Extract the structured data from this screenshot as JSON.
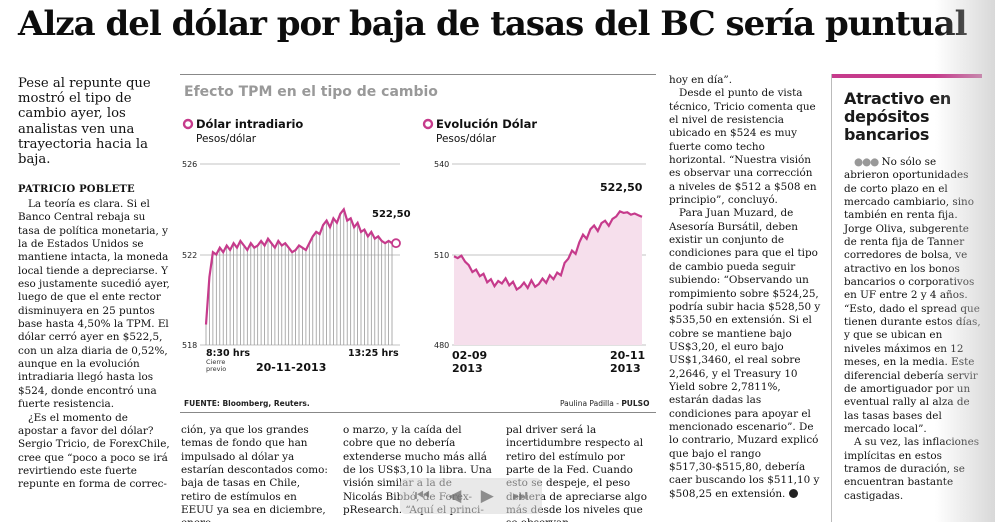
{
  "article": {
    "headline": "Alza del dólar por baja de tasas del BC sería puntual",
    "lead": "Pese al repunte que mostró el tipo de cambio ayer, los analistas ven una trayectoria hacia la baja.",
    "byline": "PATRICIO POBLETE",
    "col1": [
      "La teoría es clara. Si el Banco Central rebaja su tasa de política monetaria, y la de Estados Unidos se mantiene intacta, la moneda local tiende a depreciarse. Y eso justamente sucedió ayer, luego de que el ente rector disminuyera en 25 puntos base hasta 4,50% la TPM. El dólar cerró ayer en $522,5, con un alza diaria de 0,52%, aunque en la evolución intradiaria llegó hasta los $524, donde encontró una fuerte resistencia.",
      "¿Es el momento de apostar a favor del dólar? Sergio Tricio, de ForexChile, cree que “poco a poco se irá revirtiendo este fuerte repunte en forma de correc-"
    ],
    "col2": "ción, ya que los grandes temas de fondo que han impulsado al dólar ya estarían descontados como: baja de tasas en Chile, retiro de estímulos en EEUU ya sea en diciembre, enero",
    "col3": "o marzo, y la caída del cobre que no debería extenderse mucho más allá de los US$3,10 la libra. Una visión similar a la de Nicolás Bibbó, de Forex-pResearch. “Aquí el princi-",
    "col4": "pal driver será la incertidumbre respecto al retiro del estímulo por parte de la Fed. Cuando esto se despeje, el peso debiera de apreciarse algo más desde los niveles que se observan",
    "col5": [
      "hoy en día”.",
      "Desde el punto de vista técnico, Tricio comenta que el nivel de resistencia ubicado en $524 es muy fuerte como techo horizontal. “Nuestra visión es observar una corrección a niveles de $512 a $508 en principio”, concluyó.",
      "Para Juan Muzard, de Asesoría Bursátil, deben existir un conjunto de condiciones para que el tipo de cambio pueda seguir subiendo: “Observando un rompimiento sobre $524,25, podría subir hacia $528,50 y $535,50 en extensión. Si el cobre se mantiene bajo US$3,20, el euro bajo US$1,3460, el real sobre 2,2646, y el Treasury 10 Yield sobre 2,7811%, estarán dadas las condiciones para apoyar el mencionado escenario”. De lo contrario, Muzard explicó que bajo el rango $517,30-$515,80, debería caer buscando los $511,10 y $508,25 en extensión."
    ],
    "endmark": "n"
  },
  "sidebar": {
    "title": "Atractivo en depósitos bancarios",
    "dots": "●●●",
    "p1": "No sólo se abrieron oportunidades de corto plazo en el mercado cambiario, sino también en renta fija. Jorge Oliva, subgerente de renta fija de Tanner corredores de bolsa, ve atractivo en los bonos bancarios o corporativos en UF entre 2 y 4 años. “Esto, dado el spread que tienen durante estos días, y que se ubican en niveles máximos en 12 meses, en la media. Este diferencial debería servir de amortiguador por un eventual rally al alza de las tasas bases del mercado local”.",
    "p2": "A su vez, las inflaciones implícitas en estos tramos de duración, se encuentran bastante castigadas."
  },
  "infographic": {
    "title": "Efecto TPM en el tipo de cambio",
    "source": "FUENTE: Bloomberg, Reuters.",
    "credit_name": "Paulina Padilla",
    "credit_sep": " - ",
    "credit_pub": "PULSO",
    "accent_color": "#c63b8c",
    "fill_color": "#f6dfec"
  },
  "chart_data": [
    {
      "type": "line",
      "title": "Dólar intradiario",
      "subtitle": "Pesos/dólar",
      "yticks": [
        "526",
        "522",
        "518"
      ],
      "ylim": [
        518,
        526
      ],
      "x_labels": [
        "8:30 hrs",
        "13:25 hrs"
      ],
      "x_note": "Cierre previo",
      "date_label": "20-11-2013",
      "end_label": "522,50",
      "fill": "vertical-hatch",
      "series": [
        {
          "values": [
            518.9,
            521.0,
            522.1,
            522.0,
            522.3,
            522.1,
            522.4,
            522.2,
            522.5,
            522.3,
            522.6,
            522.4,
            522.2,
            522.5,
            522.3,
            522.4,
            522.6,
            522.4,
            522.7,
            522.5,
            522.3,
            522.6,
            522.4,
            522.5,
            522.3,
            522.1,
            522.2,
            522.4,
            522.3,
            522.2,
            522.5,
            522.8,
            523.0,
            522.9,
            523.3,
            523.5,
            523.2,
            523.6,
            523.4,
            523.8,
            524.0,
            523.5,
            523.6,
            523.2,
            523.4,
            523.0,
            523.1,
            522.8,
            523.0,
            522.7,
            522.8,
            522.6,
            522.5,
            522.6,
            522.5
          ]
        }
      ]
    },
    {
      "type": "area",
      "title": "Evolución Dólar",
      "subtitle": "Pesos/dólar",
      "yticks": [
        "540",
        "510",
        "480"
      ],
      "ylim": [
        480,
        540
      ],
      "x_labels": [
        "02-09 2013",
        "20-11 2013"
      ],
      "end_label": "522,50",
      "series": [
        {
          "values": [
            509.4,
            508.8,
            509.6,
            507.6,
            506.5,
            504.2,
            505.0,
            502.8,
            503.6,
            500.8,
            501.8,
            499.5,
            501.2,
            500.4,
            502.1,
            499.8,
            501.0,
            498.4,
            499.2,
            500.7,
            498.9,
            501.4,
            499.3,
            500.2,
            502.0,
            500.6,
            503.1,
            501.8,
            504.0,
            503.1,
            507.2,
            508.6,
            511.3,
            510.2,
            514.0,
            516.6,
            515.2,
            518.4,
            519.6,
            517.8,
            520.4,
            521.2,
            519.5,
            521.8,
            522.6,
            524.3,
            523.8,
            524.0,
            523.2,
            523.6,
            523.0,
            522.5
          ]
        }
      ]
    }
  ],
  "viewer": {
    "first_icon": "first-page-icon",
    "prev_icon": "previous-page-icon",
    "next_icon": "next-page-icon",
    "last_icon": "last-page-icon"
  }
}
